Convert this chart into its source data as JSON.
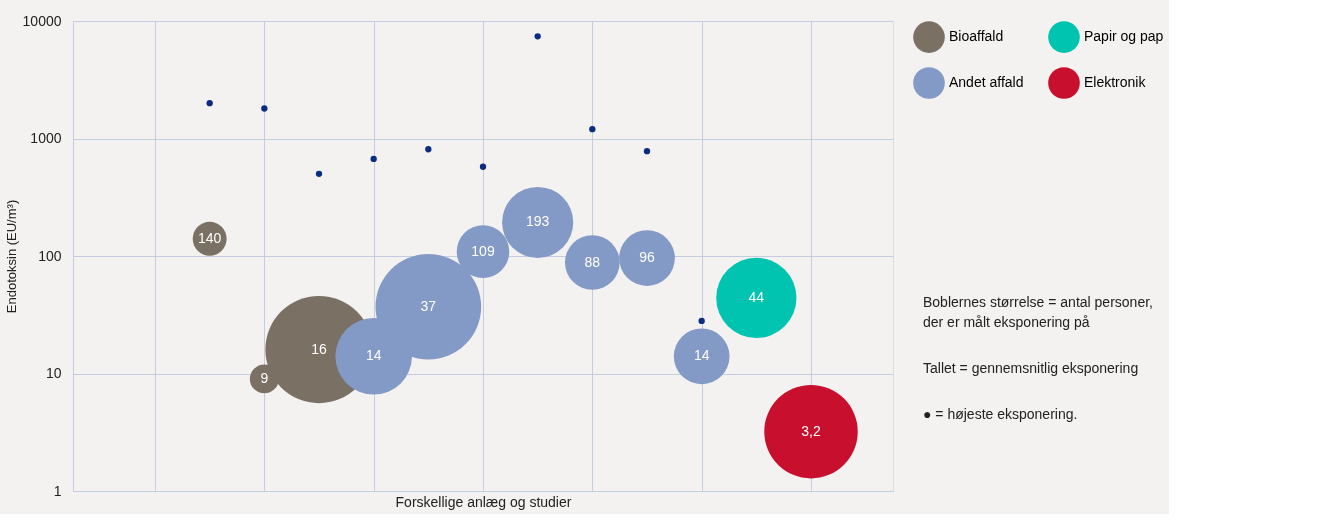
{
  "chart_data": {
    "type": "bubble",
    "xlabel": "Forskellige anlæg og studier",
    "ylabel": "Endotoksin (EU/m³)",
    "log": "y",
    "categories": [
      null,
      null,
      null,
      null,
      null,
      null,
      null,
      null,
      null,
      null,
      null,
      null,
      null,
      null,
      null
    ],
    "ylim": [
      1,
      10000
    ],
    "yticks": [
      1,
      10,
      100,
      1000,
      10000
    ],
    "tick_labels": "y",
    "grid": true,
    "legend": "right",
    "series": [
      {
        "name": "Bioaffald",
        "color": "#7a7063",
        "values": [
          null,
          null,
          140,
          9,
          16,
          null,
          null,
          null,
          null,
          null,
          null,
          null,
          null,
          null,
          null
        ],
        "sizes": [
          null,
          null,
          0.1,
          0.073,
          1,
          null,
          null,
          null,
          null,
          null,
          null,
          null,
          null,
          null,
          null
        ],
        "value_labels": [
          null,
          null,
          "140",
          "9",
          "16",
          null,
          null,
          null,
          null,
          null,
          null,
          null,
          null,
          null,
          null
        ]
      },
      {
        "name": "Andet affald",
        "color": "#8399c6",
        "values": [
          null,
          null,
          null,
          null,
          null,
          14,
          37,
          109,
          193,
          88,
          96,
          14,
          null,
          null,
          null
        ],
        "sizes": [
          null,
          null,
          null,
          null,
          null,
          0.51,
          0.97,
          0.24,
          0.44,
          0.26,
          0.27,
          0.27,
          null,
          null,
          null
        ],
        "value_labels": [
          null,
          null,
          null,
          null,
          null,
          "14",
          "37",
          "109",
          "193",
          "88",
          "96",
          "14",
          null,
          null,
          null
        ]
      },
      {
        "name": "Papir og pap",
        "color": "#00c4b0",
        "values": [
          null,
          null,
          null,
          null,
          null,
          null,
          null,
          null,
          null,
          null,
          null,
          null,
          44,
          null,
          null
        ],
        "sizes": [
          null,
          null,
          null,
          null,
          null,
          null,
          null,
          null,
          null,
          null,
          null,
          null,
          0.56,
          null,
          null
        ],
        "value_labels": [
          null,
          null,
          null,
          null,
          null,
          null,
          null,
          null,
          null,
          null,
          null,
          null,
          "44",
          null,
          null
        ]
      },
      {
        "name": "Elektronik",
        "color": "#c8102e",
        "values": [
          null,
          null,
          null,
          null,
          null,
          null,
          null,
          null,
          null,
          null,
          null,
          null,
          null,
          3.2,
          null
        ],
        "sizes": [
          null,
          null,
          null,
          null,
          null,
          null,
          null,
          null,
          null,
          null,
          null,
          null,
          null,
          0.76,
          null
        ],
        "value_labels": [
          null,
          null,
          null,
          null,
          null,
          null,
          null,
          null,
          null,
          null,
          null,
          null,
          null,
          "3,2",
          null
        ]
      },
      {
        "color": "#0a2d82",
        "type": "scatter",
        "values": [
          null,
          null,
          2000,
          1800,
          500,
          670,
          810,
          575,
          7400,
          1200,
          780,
          28,
          null,
          null,
          null
        ]
      }
    ],
    "annotations": [
      "Boblernes størrelse = antal personer,\nder er målt eksponering på",
      "Tallet = gennemsnitlig eksponering",
      "● = højeste eksponering."
    ]
  }
}
